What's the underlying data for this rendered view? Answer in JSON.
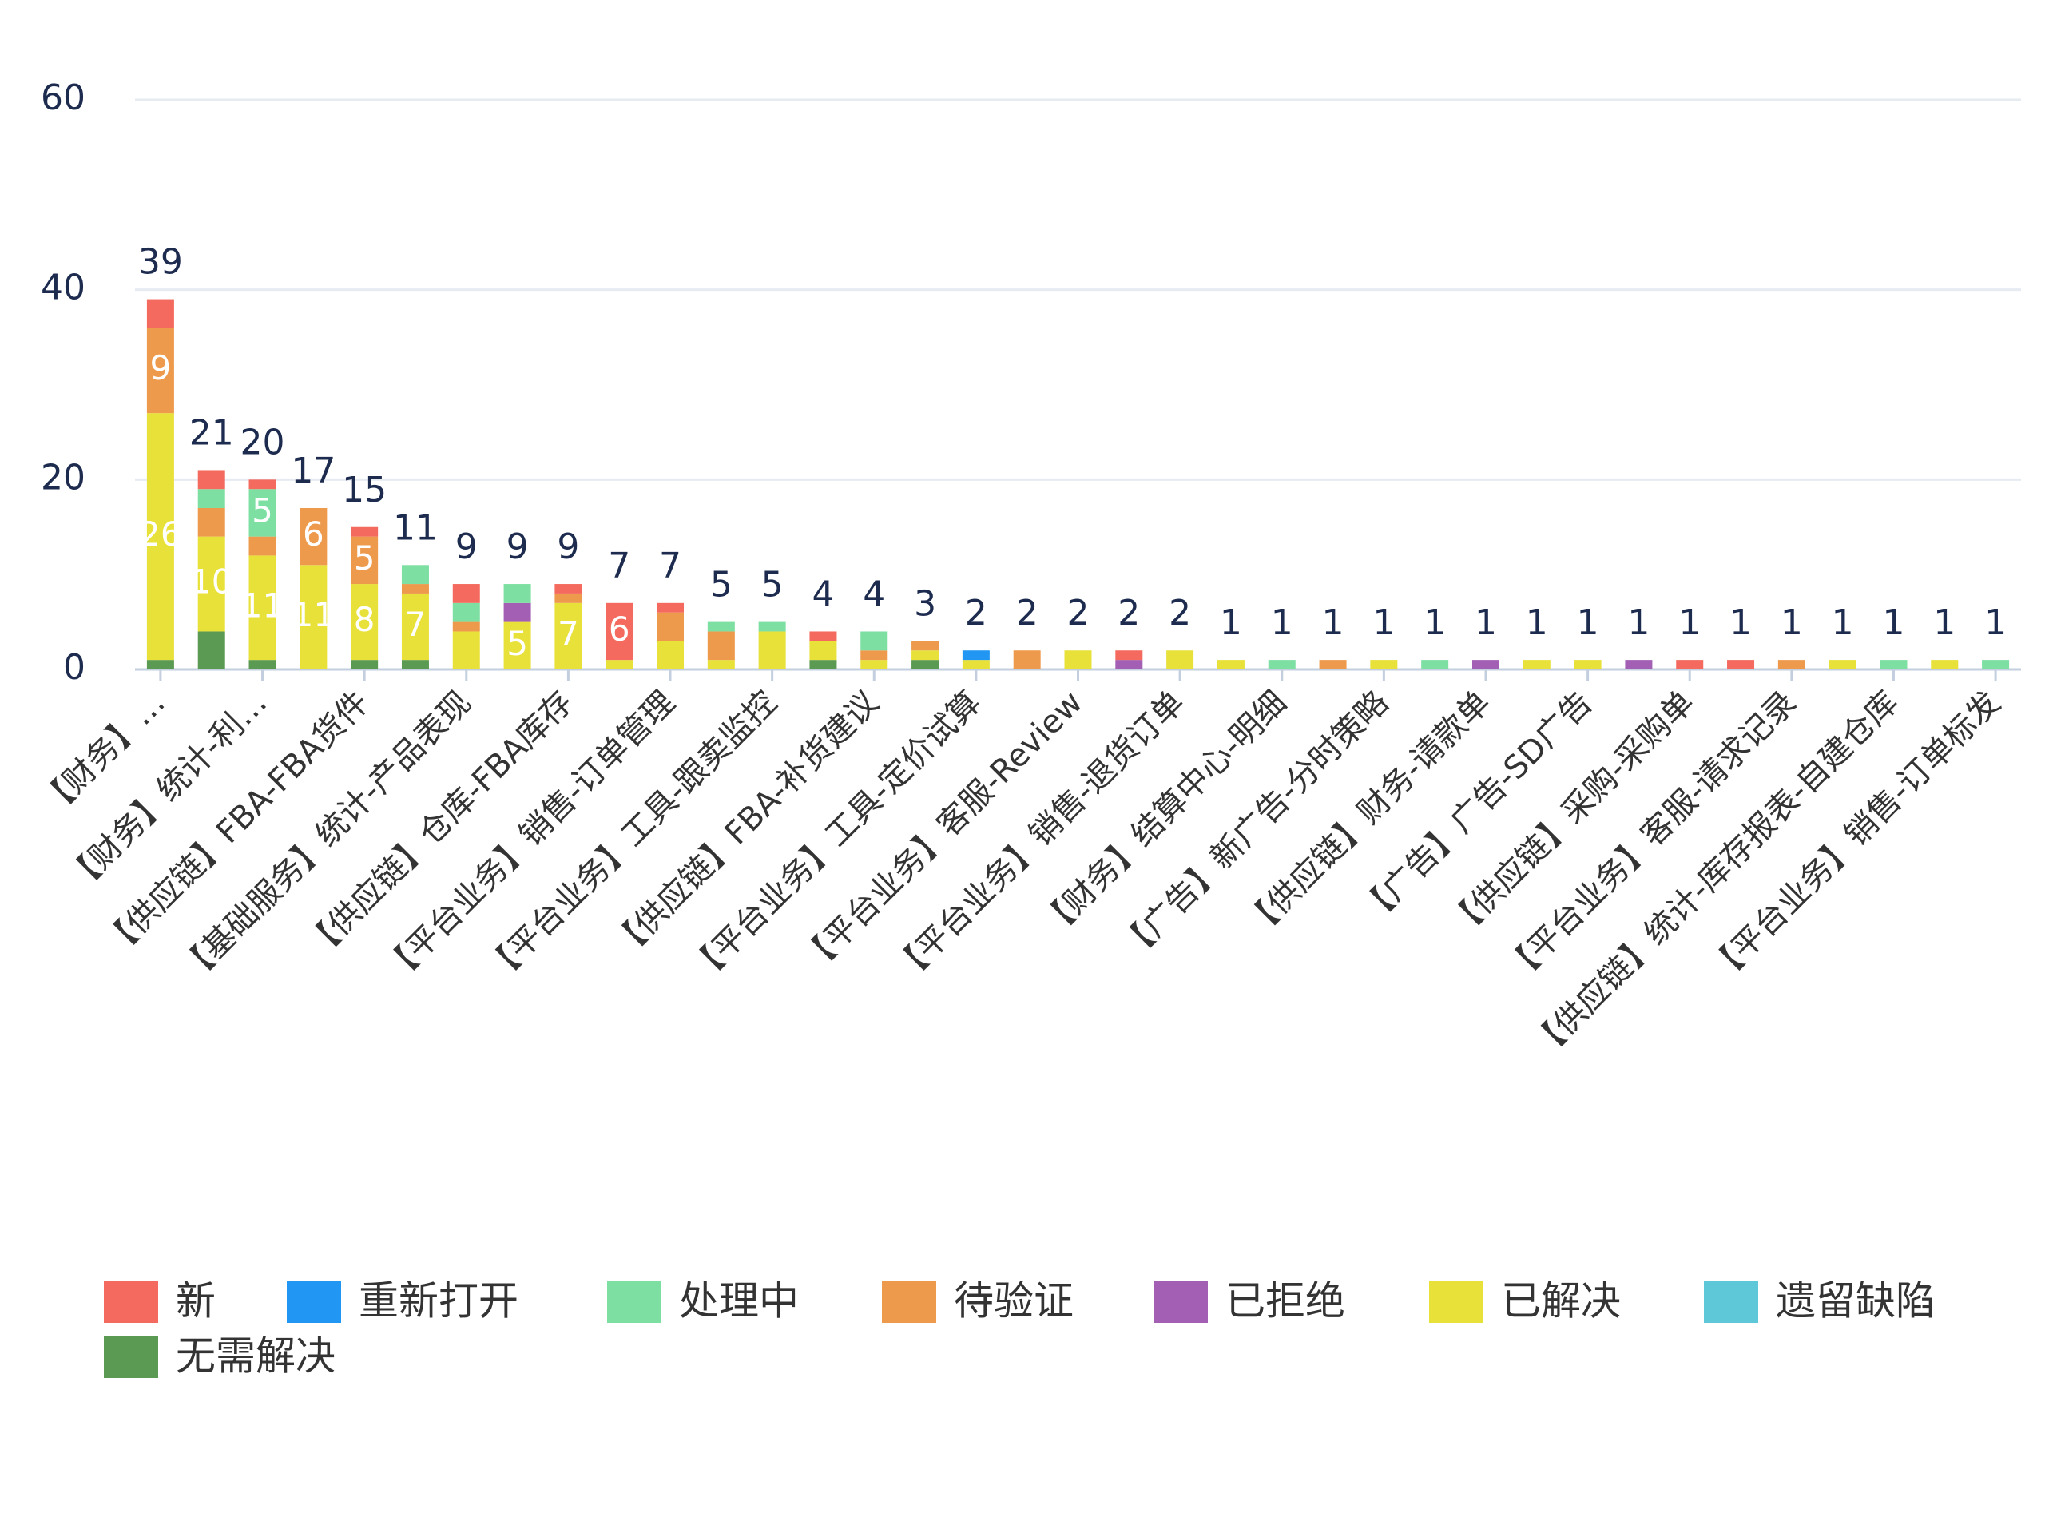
{
  "chart_data": {
    "type": "stacked_bar",
    "categories": [
      "【财务】…",
      null,
      "【财务】统计-利…",
      null,
      "【供应链】FBA-FBA货件",
      null,
      "【基础服务】统计-产品表现",
      null,
      "【供应链】仓库-FBA库存",
      null,
      "【平台业务】销售-订单管理",
      null,
      "【平台业务】工具-跟卖监控",
      null,
      "【供应链】FBA-补货建议",
      null,
      "【平台业务】工具-定价试算",
      null,
      "【平台业务】客服-Review",
      null,
      "【平台业务】销售-退货订单",
      null,
      "【财务】结算中心-明细",
      null,
      "【广告】新广告-分时策略",
      null,
      "【供应链】财务-请款单",
      null,
      "【广告】广告-SD广告",
      null,
      "【供应链】采购-采购单",
      null,
      "【平台业务】客服-请求记录",
      null,
      "【供应链】统计-库存报表-自建仓库",
      null,
      "【平台业务】销售-订单标发"
    ],
    "series": [
      {
        "name": "无需解决",
        "color": "#5b9a52",
        "values": [
          1,
          4,
          1,
          0,
          1,
          1,
          0,
          0,
          0,
          0,
          0,
          0,
          0,
          1,
          0,
          1,
          0,
          0,
          0,
          0,
          0,
          0,
          0,
          0,
          0,
          0,
          0,
          0,
          0,
          0,
          0,
          0,
          0,
          0,
          0,
          0,
          0
        ]
      },
      {
        "name": "已解决",
        "color": "#e8e13a",
        "values": [
          26,
          10,
          11,
          11,
          8,
          7,
          4,
          5,
          7,
          1,
          3,
          1,
          4,
          2,
          1,
          1,
          1,
          0,
          2,
          0,
          2,
          1,
          0,
          0,
          1,
          0,
          0,
          1,
          1,
          0,
          0,
          0,
          0,
          1,
          0,
          1,
          0
        ]
      },
      {
        "name": "已拒绝",
        "color": "#a35fb4",
        "values": [
          0,
          0,
          0,
          0,
          0,
          0,
          0,
          2,
          0,
          0,
          0,
          0,
          0,
          0,
          0,
          0,
          0,
          0,
          0,
          1,
          0,
          0,
          0,
          0,
          0,
          0,
          1,
          0,
          0,
          1,
          0,
          0,
          0,
          0,
          0,
          0,
          0
        ]
      },
      {
        "name": "待验证",
        "color": "#ee9a4d",
        "values": [
          9,
          3,
          2,
          6,
          5,
          1,
          1,
          0,
          1,
          0,
          3,
          3,
          0,
          0,
          1,
          1,
          0,
          2,
          0,
          0,
          0,
          0,
          0,
          1,
          0,
          0,
          0,
          0,
          0,
          0,
          0,
          0,
          1,
          0,
          0,
          0,
          0
        ]
      },
      {
        "name": "处理中",
        "color": "#7ddfa2",
        "values": [
          0,
          2,
          5,
          0,
          0,
          2,
          2,
          2,
          0,
          0,
          0,
          1,
          1,
          0,
          2,
          0,
          0,
          0,
          0,
          0,
          0,
          0,
          1,
          0,
          0,
          1,
          0,
          0,
          0,
          0,
          0,
          0,
          0,
          0,
          1,
          0,
          1
        ]
      },
      {
        "name": "重新打开",
        "color": "#2196f3",
        "values": [
          0,
          0,
          0,
          0,
          0,
          0,
          0,
          0,
          0,
          0,
          0,
          0,
          0,
          0,
          0,
          0,
          1,
          0,
          0,
          0,
          0,
          0,
          0,
          0,
          0,
          0,
          0,
          0,
          0,
          0,
          0,
          0,
          0,
          0,
          0,
          0,
          0
        ]
      },
      {
        "name": "遗留缺陷",
        "color": "#5ec8d8",
        "values": [
          0,
          0,
          0,
          0,
          0,
          0,
          0,
          0,
          0,
          0,
          0,
          0,
          0,
          0,
          0,
          0,
          0,
          0,
          0,
          0,
          0,
          0,
          0,
          0,
          0,
          0,
          0,
          0,
          0,
          0,
          0,
          0,
          0,
          0,
          0,
          0,
          0
        ]
      },
      {
        "name": "新",
        "color": "#f46a5e",
        "values": [
          3,
          2,
          1,
          0,
          1,
          0,
          2,
          0,
          1,
          6,
          1,
          0,
          0,
          1,
          0,
          0,
          0,
          0,
          0,
          1,
          0,
          0,
          0,
          0,
          0,
          0,
          0,
          0,
          0,
          0,
          1,
          1,
          0,
          0,
          0,
          0,
          0
        ]
      }
    ],
    "totals": [
      39,
      21,
      20,
      17,
      15,
      11,
      9,
      9,
      9,
      7,
      7,
      5,
      5,
      4,
      4,
      3,
      2,
      2,
      2,
      2,
      2,
      1,
      1,
      1,
      1,
      1,
      1,
      1,
      1,
      1,
      1,
      1,
      1,
      1,
      1,
      1,
      1
    ],
    "legend_order": [
      7,
      5,
      4,
      3,
      2,
      1,
      6,
      0
    ],
    "ylim": [
      0,
      60
    ],
    "yticks": [
      0,
      20,
      40,
      60
    ],
    "grid": true
  }
}
